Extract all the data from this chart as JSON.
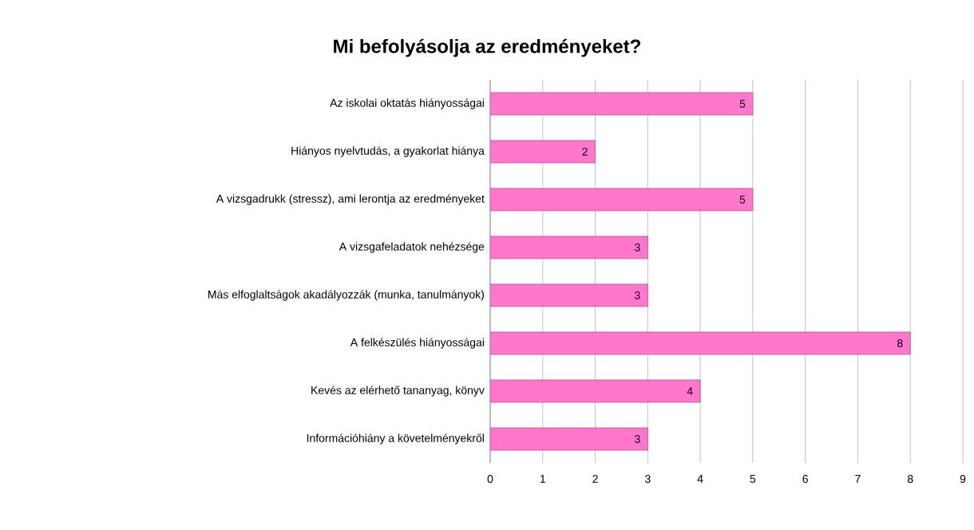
{
  "chart_data": {
    "type": "bar",
    "orientation": "horizontal",
    "title": "Mi befolyásolja az eredményeket?",
    "categories": [
      "Az iskolai oktatás hiányosságai",
      "Hiányos nyelvtudás, a gyakorlat hiánya",
      "A vizsgadrukk (stressz), ami lerontja az eredményeket",
      "A vizsgafeladatok nehézsége",
      "Más elfoglaltságok akadályozzák (munka, tanulmányok)",
      "A felkészülés hiányosságai",
      "Kevés az elérhető tananyag, könyv",
      "Információhiány a követelményekről"
    ],
    "values": [
      5,
      2,
      5,
      3,
      3,
      8,
      4,
      3
    ],
    "color": "#ff77cc",
    "xlim": [
      0,
      9
    ],
    "xticks": [
      0,
      1,
      2,
      3,
      4,
      5,
      6,
      7,
      8,
      9
    ],
    "grid": "x",
    "data_labels": true
  }
}
